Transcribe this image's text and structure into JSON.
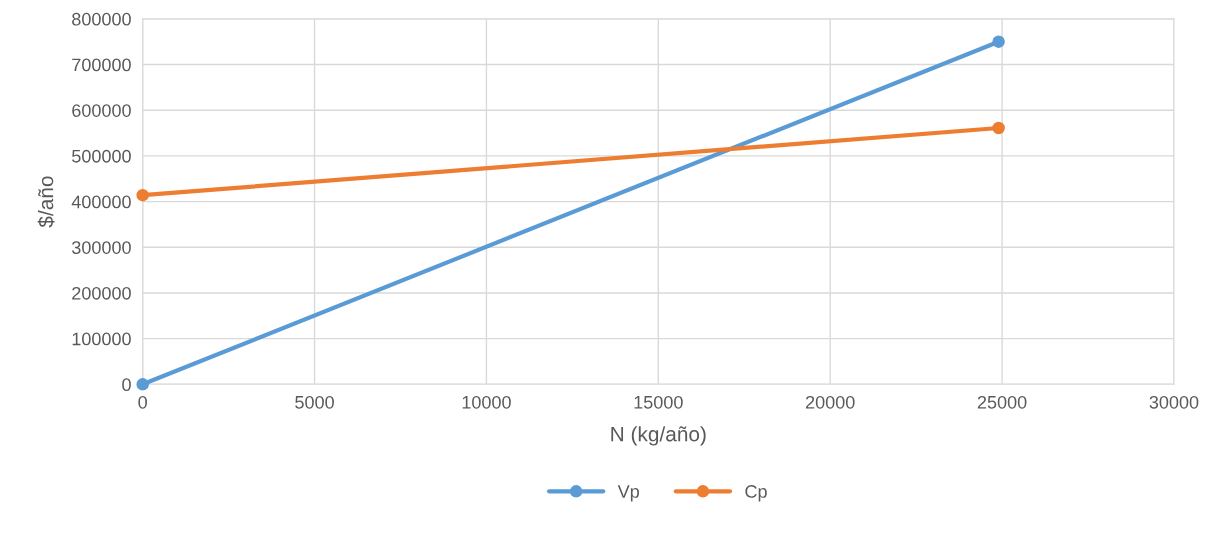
{
  "chart_data": {
    "type": "line",
    "xlabel": "N (kg/año)",
    "ylabel": "$/año",
    "xlim": [
      0,
      30000
    ],
    "xticks": [
      0,
      5000,
      10000,
      15000,
      20000,
      25000,
      30000
    ],
    "ylim": [
      0,
      800000
    ],
    "yticks": [
      0,
      100000,
      200000,
      300000,
      400000,
      500000,
      600000,
      700000,
      800000
    ],
    "x": [
      0,
      24900
    ],
    "series": [
      {
        "name": "Vp",
        "color": "#5b9bd5",
        "values": [
          0,
          750000
        ]
      },
      {
        "name": "Cp",
        "color": "#ed7d31",
        "values": [
          414000,
          561000
        ]
      }
    ],
    "grid": true,
    "legend": "bottom",
    "marker": "circle",
    "line_style": "solid"
  }
}
